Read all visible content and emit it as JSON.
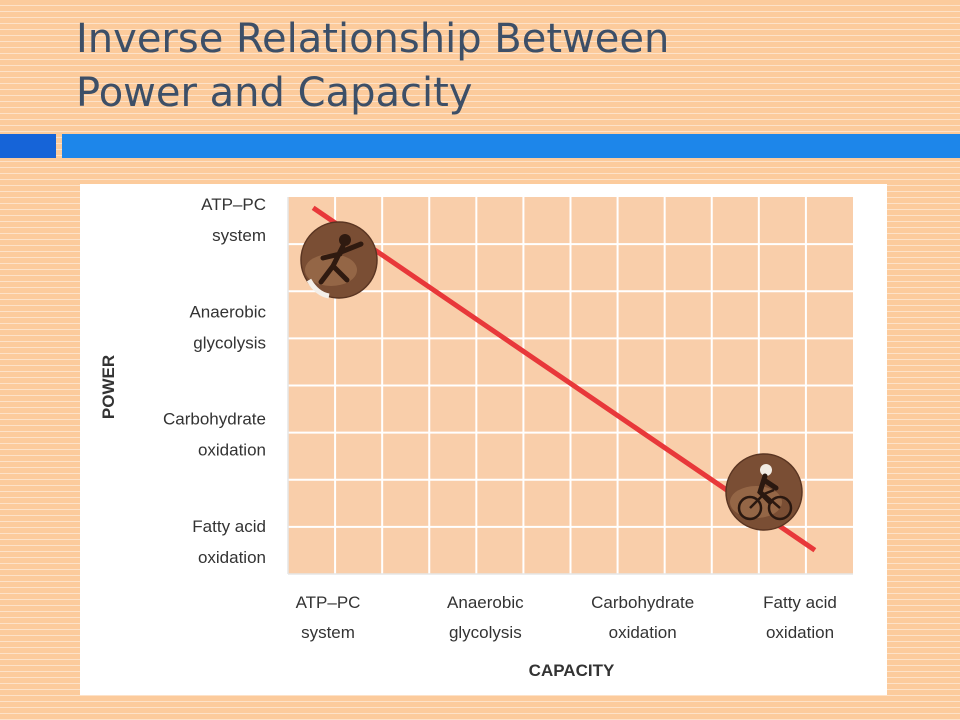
{
  "slide": {
    "title_line1": "Inverse Relationship Between",
    "title_line2": "Power and Capacity"
  },
  "colors": {
    "background": "#fccb9c",
    "plot_area": "#f9ceaa",
    "line": "#e8383a",
    "accent_dark": "#1664d8",
    "accent_light": "#1d86ea",
    "title": "#3d4f67"
  },
  "chart_data": {
    "type": "line",
    "title": "",
    "xlabel": "CAPACITY",
    "ylabel": "POWER",
    "x_categories": [
      [
        "ATP–PC",
        "system"
      ],
      [
        "Anaerobic",
        "glycolysis"
      ],
      [
        "Carbohydrate",
        "oxidation"
      ],
      [
        "Fatty acid",
        "oxidation"
      ]
    ],
    "y_categories": [
      [
        "Fatty acid",
        "oxidation"
      ],
      [
        "Carbohydrate",
        "oxidation"
      ],
      [
        "Anaerobic",
        "glycolysis"
      ],
      [
        "ATP–PC",
        "system"
      ]
    ],
    "series": [
      {
        "points": [
          {
            "x": "ATP–PC system",
            "y": "ATP–PC system"
          },
          {
            "x": "Fatty acid oxidation",
            "y": "Fatty acid oxidation"
          }
        ]
      }
    ],
    "grid": true,
    "markers": [
      {
        "icon": "sprinter-photo-icon",
        "at": "ATP–PC system"
      },
      {
        "icon": "cyclist-photo-icon",
        "at": "Fatty acid oxidation"
      }
    ]
  }
}
